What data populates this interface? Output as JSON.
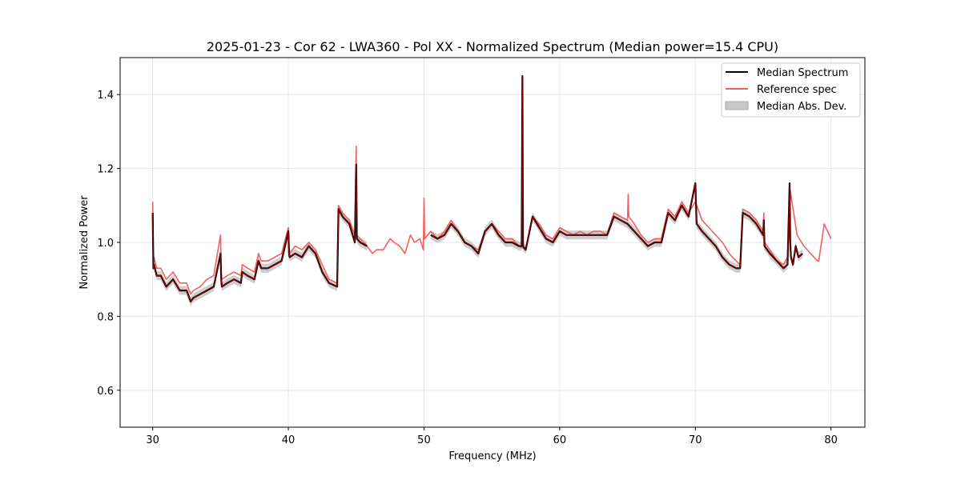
{
  "chart_data": {
    "type": "line",
    "title": "2025-01-23 - Cor 62 - LWA360 - Pol XX - Normalized Spectrum (Median power=15.4 CPU)",
    "xlabel": "Frequency (MHz)",
    "ylabel": "Normalized Power",
    "xlim": [
      27.6,
      82.5
    ],
    "ylim": [
      0.5,
      1.5
    ],
    "xticks": [
      30,
      40,
      50,
      60,
      70,
      80
    ],
    "xtick_labels": [
      "30",
      "40",
      "50",
      "60",
      "70",
      "80"
    ],
    "yticks": [
      0.6,
      0.8,
      1.0,
      1.2,
      1.4
    ],
    "ytick_labels": [
      "0.6",
      "0.8",
      "1.0",
      "1.2",
      "1.4"
    ],
    "grid": true,
    "legend_position": "top-right",
    "legend": [
      "Median Spectrum",
      "Reference spec",
      "Median Abs. Dev."
    ],
    "colors": {
      "median": "#000000",
      "reference": "#f26060",
      "mad": "#b0b0b0",
      "overlap": "#8b0000"
    },
    "series": [
      {
        "name": "Reference spec",
        "x": [
          30.0,
          30.05,
          30.1,
          30.3,
          30.6,
          31.0,
          31.5,
          32.0,
          32.5,
          32.8,
          33.0,
          33.5,
          34.0,
          34.5,
          35.0,
          35.05,
          35.1,
          35.5,
          36.0,
          36.5,
          36.6,
          37.0,
          37.5,
          37.8,
          38.0,
          38.5,
          39.0,
          39.5,
          40.0,
          40.05,
          40.1,
          40.5,
          41.0,
          41.5,
          42.0,
          42.5,
          43.0,
          43.6,
          43.7,
          44.0,
          44.5,
          44.9,
          45.0,
          45.05,
          45.3,
          45.8,
          46.2,
          46.5,
          47.0,
          47.5,
          47.8,
          48.2,
          48.6,
          49.0,
          49.3,
          49.7,
          49.95,
          50.0,
          50.05,
          50.5,
          51.0,
          51.5,
          52.0,
          52.5,
          53.0,
          53.5,
          54.0,
          54.5,
          55.0,
          55.5,
          56.0,
          56.5,
          57.0,
          57.5,
          58.0,
          58.5,
          59.0,
          59.5,
          60.0,
          60.5,
          61.0,
          61.5,
          62.0,
          62.5,
          63.0,
          63.5,
          64.0,
          64.5,
          65.0,
          65.05,
          65.1,
          65.5,
          66.0,
          66.5,
          67.0,
          67.5,
          68.0,
          68.5,
          69.0,
          69.5,
          70.0,
          70.5,
          71.0,
          71.5,
          72.0,
          72.5,
          73.0,
          73.3,
          73.5,
          74.0,
          74.5,
          75.0,
          75.05,
          75.1,
          75.5,
          76.0,
          76.5,
          76.8,
          77.0,
          77.5,
          78.0,
          78.5,
          79.0,
          79.1,
          79.5,
          80.0
        ],
        "y": [
          1.11,
          0.94,
          0.96,
          0.93,
          0.93,
          0.9,
          0.92,
          0.89,
          0.89,
          0.86,
          0.87,
          0.88,
          0.9,
          0.91,
          1.02,
          0.92,
          0.9,
          0.91,
          0.92,
          0.91,
          0.94,
          0.93,
          0.92,
          0.97,
          0.95,
          0.95,
          0.96,
          0.97,
          1.04,
          0.99,
          0.97,
          0.99,
          0.98,
          1.0,
          0.98,
          0.94,
          0.9,
          0.89,
          1.1,
          1.08,
          1.06,
          1.02,
          1.26,
          1.02,
          1.01,
          0.99,
          0.97,
          0.98,
          0.98,
          1.01,
          1.0,
          0.99,
          0.97,
          1.02,
          1.0,
          1.01,
          0.98,
          1.12,
          1.01,
          1.03,
          1.01,
          1.03,
          1.06,
          1.03,
          1.0,
          0.99,
          0.98,
          1.03,
          1.05,
          1.03,
          1.01,
          1.01,
          0.99,
          0.98,
          1.07,
          1.05,
          1.02,
          1.01,
          1.04,
          1.03,
          1.02,
          1.03,
          1.02,
          1.03,
          1.03,
          1.02,
          1.08,
          1.07,
          1.06,
          1.13,
          1.07,
          1.05,
          1.02,
          1.0,
          1.01,
          1.01,
          1.09,
          1.07,
          1.11,
          1.08,
          1.11,
          1.06,
          1.04,
          1.02,
          1.0,
          0.97,
          0.95,
          0.94,
          1.09,
          1.08,
          1.06,
          1.03,
          1.08,
          1.0,
          0.98,
          0.95,
          0.94,
          0.96,
          1.14,
          1.02,
          0.99,
          0.97,
          0.95,
          0.95,
          1.05,
          1.01
        ]
      },
      {
        "name": "Median Spectrum",
        "x": [
          30.0,
          30.05,
          30.1,
          30.3,
          30.6,
          31.0,
          31.5,
          32.0,
          32.5,
          32.8,
          33.0,
          33.5,
          34.0,
          34.5,
          35.0,
          35.05,
          35.1,
          35.5,
          36.0,
          36.5,
          36.6,
          37.0,
          37.5,
          37.8,
          38.0,
          38.5,
          39.0,
          39.5,
          40.0,
          40.05,
          40.1,
          40.5,
          41.0,
          41.5,
          42.0,
          42.5,
          43.0,
          43.6,
          43.7,
          44.0,
          44.5,
          44.9,
          45.0,
          45.05,
          45.3,
          45.8
        ],
        "y": [
          1.08,
          0.93,
          0.94,
          0.91,
          0.91,
          0.88,
          0.9,
          0.87,
          0.87,
          0.84,
          0.85,
          0.86,
          0.87,
          0.88,
          0.97,
          0.9,
          0.88,
          0.89,
          0.9,
          0.89,
          0.92,
          0.91,
          0.9,
          0.95,
          0.93,
          0.93,
          0.94,
          0.95,
          1.03,
          0.97,
          0.96,
          0.97,
          0.96,
          0.99,
          0.97,
          0.92,
          0.89,
          0.88,
          1.09,
          1.07,
          1.05,
          1.0,
          1.21,
          1.01,
          1.0,
          0.99
        ]
      },
      {
        "name": "Median Spectrum",
        "x": [
          50.5,
          51.0,
          51.5,
          52.0,
          52.5,
          53.0,
          53.5,
          54.0,
          54.5,
          55.0,
          55.5,
          56.0,
          56.5,
          57.0,
          57.2,
          57.25,
          57.3,
          57.5,
          58.0,
          58.5,
          59.0,
          59.5,
          60.0,
          60.5,
          61.0,
          61.5,
          62.0,
          62.5,
          63.0,
          63.5,
          64.0,
          64.5,
          65.0,
          65.5,
          66.0,
          66.5,
          67.0,
          67.5,
          68.0,
          68.5,
          69.0,
          69.5,
          70.0,
          70.05,
          70.1,
          70.5,
          71.0,
          71.5,
          72.0,
          72.5,
          73.0,
          73.3,
          73.5,
          74.0,
          74.5,
          75.0,
          75.05,
          75.1,
          75.5,
          76.0,
          76.5,
          76.8,
          76.95,
          77.0,
          77.05,
          77.2,
          77.4,
          77.6,
          77.9
        ],
        "y": [
          1.02,
          1.01,
          1.02,
          1.05,
          1.03,
          1.0,
          0.99,
          0.97,
          1.03,
          1.05,
          1.02,
          1.0,
          1.0,
          0.99,
          0.99,
          1.45,
          0.99,
          0.98,
          1.07,
          1.04,
          1.01,
          1.0,
          1.03,
          1.02,
          1.02,
          1.02,
          1.02,
          1.02,
          1.02,
          1.02,
          1.07,
          1.06,
          1.05,
          1.03,
          1.01,
          0.99,
          1.0,
          1.0,
          1.08,
          1.06,
          1.1,
          1.07,
          1.16,
          1.1,
          1.05,
          1.03,
          1.01,
          0.99,
          0.96,
          0.94,
          0.93,
          0.93,
          1.08,
          1.07,
          1.05,
          1.02,
          1.06,
          0.99,
          0.97,
          0.95,
          0.93,
          0.94,
          1.16,
          1.0,
          0.96,
          0.94,
          0.99,
          0.96,
          0.97
        ]
      }
    ]
  }
}
